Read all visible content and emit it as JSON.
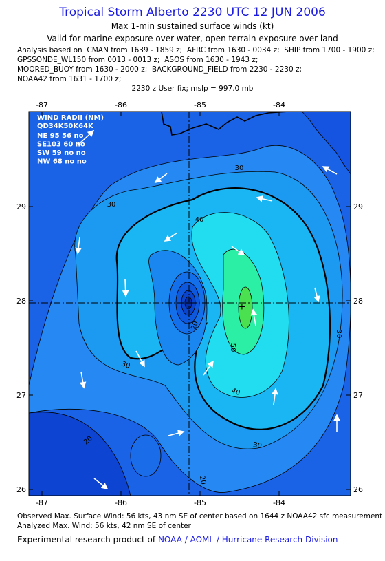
{
  "header": {
    "title": "Tropical Storm Alberto 2230 UTC 12 JUN 2006",
    "subtitle": "Max 1-min sustained surface winds (kt)",
    "valid": "Valid for marine exposure over water, open terrain exposure over land",
    "analysis_lines": [
      "Analysis based on  CMAN from 1639 - 1859 z;  AFRC from 1630 - 0034 z;  SHIP from 1700 - 1900 z;",
      "GPSSONDE_WL150 from 0013 - 0013 z;  ASOS from 1630 - 1943 z;",
      "MOORED_BUOY from 1630 - 2000 z;  BACKGROUND_FIELD from 2230 - 2230 z;",
      "NOAA42 from 1631 - 1700 z;"
    ],
    "fix": "2230 z User fix; mslp = 997.0 mb"
  },
  "map": {
    "lon_ticks": [
      -87,
      -86,
      -85,
      -84
    ],
    "lat_ticks": [
      29,
      28,
      27,
      26
    ],
    "contour_labels": [
      30,
      30,
      20,
      40,
      30,
      40,
      50,
      30,
      30,
      20,
      20
    ],
    "wind_radii": {
      "title": "WIND RADII (NM)",
      "header": "QD34K50K64K",
      "rows": [
        "NE 95 56 no",
        "SE103 60 no",
        "SW 59 no no",
        "NW 68 no no"
      ]
    }
  },
  "footer": {
    "observed": "Observed Max. Surface Wind: 56 kts, 43 nm SE of center based on 1644 z NOAA42 sfc measurement",
    "analyzed": "Analyzed Max. Wind: 56 kts, 42 nm SE of center",
    "credit": "Experimental research product of",
    "link": "NOAA / AOML / Hurricane Research Division"
  }
}
